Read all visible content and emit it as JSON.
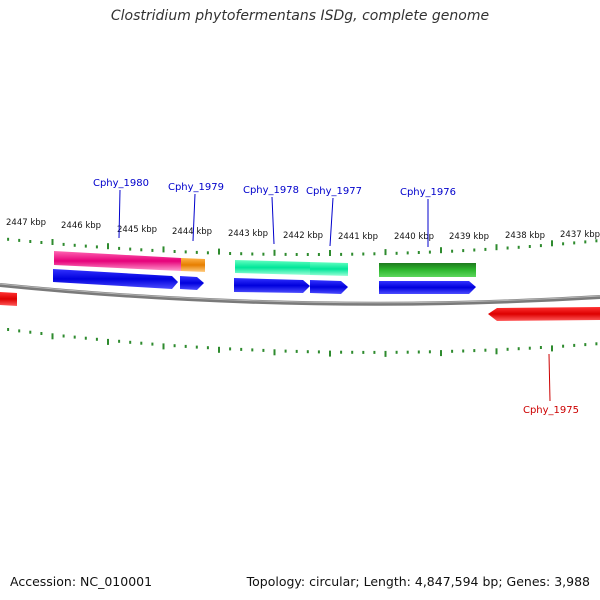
{
  "title": "Clostridium phytofermentans ISDg, complete genome",
  "footer": {
    "accession": "Accession: NC_010001",
    "summary": "Topology: circular; Length: 4,847,594 bp; Genes: 3,988"
  },
  "colors": {
    "backbone": "#7a7a7a",
    "tick": "#2e8b2e",
    "label_top": "#0000cc",
    "label_bottom": "#cc0000"
  },
  "kbp_labels": [
    "2447 kbp",
    "2446 kbp",
    "2445 kbp",
    "2444 kbp",
    "2443 kbp",
    "2442 kbp",
    "2441 kbp",
    "2440 kbp",
    "2439 kbp",
    "2438 kbp",
    "2437 kbp"
  ],
  "features": [
    {
      "name": "Cphy_1980",
      "strand": "+",
      "colors": [
        "#ff3399",
        "#0000ee"
      ]
    },
    {
      "name": "Cphy_1979",
      "strand": "+",
      "colors": [
        "#ff8c00",
        "#0000ee"
      ]
    },
    {
      "name": "Cphy_1978",
      "strand": "+",
      "colors": [
        "#33ffaa",
        "#0000ee"
      ]
    },
    {
      "name": "Cphy_1977",
      "strand": "+",
      "colors": [
        "#33ffaa",
        "#0000ee"
      ]
    },
    {
      "name": "Cphy_1976",
      "strand": "+",
      "colors": [
        "#2e9e2e",
        "#0000ee"
      ]
    },
    {
      "name": "Cphy_1975",
      "strand": "-",
      "colors": [
        "#ff0000"
      ]
    }
  ]
}
